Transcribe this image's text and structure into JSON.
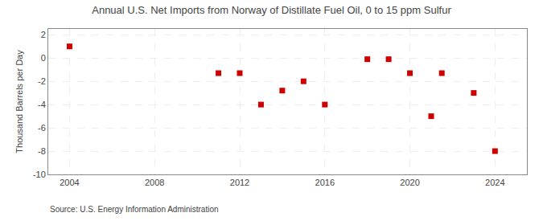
{
  "chart_data": {
    "type": "scatter",
    "title": "Annual U.S. Net Imports from Norway of Distillate Fuel Oil, 0 to 15 ppm Sulfur",
    "ylabel": "Thousand Barrels per Day",
    "annotations": [
      "Source: U.S. Energy Information Administration"
    ],
    "x": [
      2004,
      2011,
      2012,
      2013,
      2014,
      2015,
      2016,
      2018,
      2019,
      2020,
      2021,
      2021.5,
      2023,
      2024
    ],
    "values": [
      1.0,
      -1.3,
      -1.3,
      -4.0,
      -2.8,
      -2.0,
      -4.0,
      -0.1,
      -0.1,
      -1.3,
      -5.0,
      -1.3,
      -3.0,
      -8.0
    ],
    "color": "#cc0000",
    "marker": "square",
    "xlim": [
      2003.0,
      2025.5
    ],
    "ylim": [
      -10,
      2.5
    ],
    "xticks": [
      2004,
      2008,
      2012,
      2016,
      2020,
      2024
    ],
    "yticks": [
      2,
      0,
      -2,
      -4,
      -6,
      -8,
      -10
    ],
    "grid": true
  }
}
